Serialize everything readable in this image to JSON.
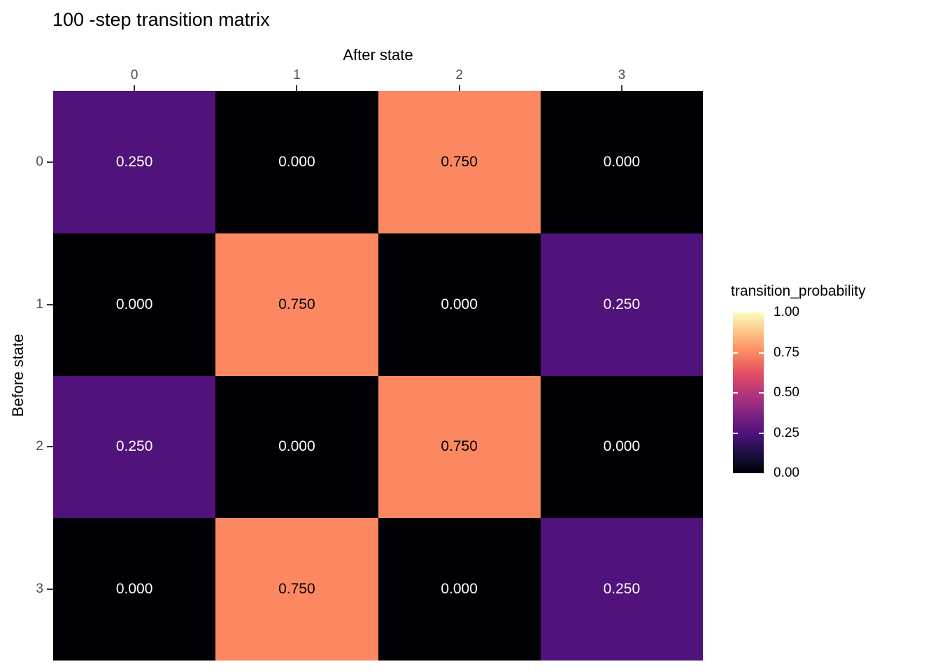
{
  "chart_data": {
    "type": "heatmap",
    "title": "100 -step transition matrix",
    "xlabel": "After state",
    "ylabel": "Before state",
    "x_categories": [
      "0",
      "1",
      "2",
      "3"
    ],
    "y_categories": [
      "0",
      "1",
      "2",
      "3"
    ],
    "values": [
      [
        0.25,
        0.0,
        0.75,
        0.0
      ],
      [
        0.0,
        0.75,
        0.0,
        0.25
      ],
      [
        0.25,
        0.0,
        0.75,
        0.0
      ],
      [
        0.0,
        0.75,
        0.0,
        0.25
      ]
    ],
    "cell_labels": [
      [
        "0.250",
        "0.000",
        "0.750",
        "0.000"
      ],
      [
        "0.000",
        "0.750",
        "0.000",
        "0.250"
      ],
      [
        "0.250",
        "0.000",
        "0.750",
        "0.000"
      ],
      [
        "0.000",
        "0.750",
        "0.000",
        "0.250"
      ]
    ],
    "colorscale": "magma",
    "value_colors": {
      "0": "#000004",
      "0.25": "#50127b",
      "0.75": "#fb8861"
    },
    "cell_text_colors": {
      "light": "#ffffff",
      "dark": "#000000"
    },
    "grid": false,
    "legend": {
      "title": "transition_probability",
      "position": "right",
      "range": [
        0.0,
        1.0
      ],
      "tick_labels": [
        "1.00",
        "0.75",
        "0.50",
        "0.25",
        "0.00"
      ],
      "tick_values": [
        1.0,
        0.75,
        0.5,
        0.25,
        0.0
      ],
      "gradient_top": "#fcfdbf",
      "gradient_bottom": "#000004"
    },
    "axis_text_color": "#4d4d4d",
    "tick_mark_color": "#333333"
  }
}
